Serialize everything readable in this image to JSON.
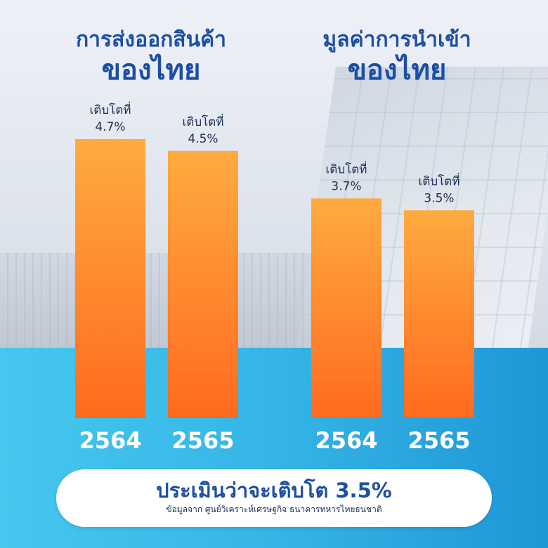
{
  "headings": {
    "export": {
      "line1": "การส่งออกสินค้า",
      "line2": "ของไทย"
    },
    "import": {
      "line1": "มูลค่าการนำเข้า",
      "line2": "ของไทย"
    }
  },
  "footer": {
    "main": "ประเมินว่าจะเติบโต 3.5%",
    "source": "ข้อมูลจาก ศูนย์วิเคราะห์เศรษฐกิจ ธนาคารทหารไทยธนชาติ"
  },
  "colors": {
    "bar_top": "#FFAB40",
    "bar_bottom": "#FF6A1F",
    "heading": "#1B4FA3"
  },
  "chart_data": [
    {
      "type": "bar",
      "categories": [
        "2564",
        "2565"
      ],
      "values": [
        4.7,
        4.5
      ],
      "labels": [
        {
          "line1": "เติบโตที่",
          "line2": "4.7%"
        },
        {
          "line1": "เติบโตที่",
          "line2": "4.5%"
        }
      ],
      "unit": "%"
    },
    {
      "type": "bar",
      "categories": [
        "2564",
        "2565"
      ],
      "values": [
        3.7,
        3.5
      ],
      "labels": [
        {
          "line1": "เติบโตที่",
          "line2": "3.7%"
        },
        {
          "line1": "เติบโตที่",
          "line2": "3.5%"
        }
      ],
      "unit": "%"
    }
  ]
}
